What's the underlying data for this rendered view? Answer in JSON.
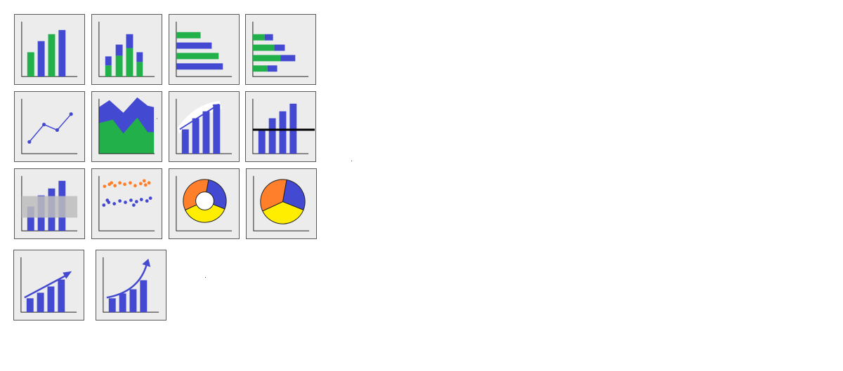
{
  "palette": {
    "blue": "#4349d0",
    "green": "#22b04a",
    "orange": "#ff7f2a",
    "yellow": "#ffee00",
    "axis": "#222222",
    "band": "#bdbdbd",
    "tile_bg": "#ececec"
  },
  "chart_types": [
    {
      "id": "column",
      "icon": "column-chart-icon"
    },
    {
      "id": "stacked-column",
      "icon": "stacked-column-chart-icon"
    },
    {
      "id": "bar",
      "icon": "bar-chart-icon"
    },
    {
      "id": "stacked-bar",
      "icon": "stacked-bar-chart-icon"
    },
    {
      "id": "line",
      "icon": "line-chart-icon"
    },
    {
      "id": "area",
      "icon": "area-chart-icon"
    },
    {
      "id": "column-trend",
      "icon": "column-trend-chart-icon"
    },
    {
      "id": "column-target-line",
      "icon": "column-target-line-chart-icon"
    },
    {
      "id": "column-band",
      "icon": "column-band-chart-icon"
    },
    {
      "id": "scatter",
      "icon": "scatter-chart-icon"
    },
    {
      "id": "donut",
      "icon": "donut-chart-icon"
    },
    {
      "id": "pie",
      "icon": "pie-chart-icon"
    },
    {
      "id": "column-linear-growth",
      "icon": "linear-growth-chart-icon"
    },
    {
      "id": "column-exponential-growth",
      "icon": "exponential-growth-chart-icon"
    }
  ]
}
